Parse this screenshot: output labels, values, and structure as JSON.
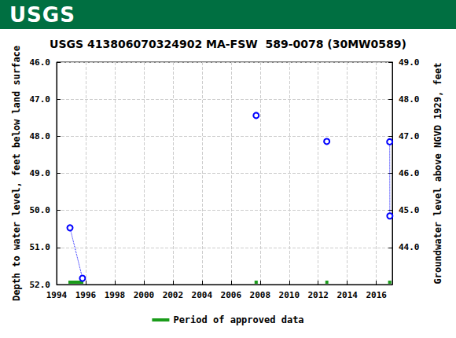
{
  "header": "USGS",
  "chart_data": {
    "type": "scatter",
    "title": "USGS 413806070324902 MA-FSW  589-0078 (30MW0589)",
    "y_label": "Depth to water level, feet below land surface",
    "y2_label": "Groundwater level above NGVD 1929, feet",
    "xlim": [
      1994,
      2017.1
    ],
    "xticks": [
      1994,
      1996,
      1998,
      2000,
      2002,
      2004,
      2006,
      2008,
      2010,
      2012,
      2014,
      2016
    ],
    "ylim": [
      46,
      52
    ],
    "yticks": [
      {
        "value": 46,
        "label": "46.0"
      },
      {
        "value": 47,
        "label": "47.0"
      },
      {
        "value": 48,
        "label": "48.0"
      },
      {
        "value": 49,
        "label": "49.0"
      },
      {
        "value": 50,
        "label": "50.0"
      },
      {
        "value": 51,
        "label": "51.0"
      },
      {
        "value": 52,
        "label": "52.0"
      }
    ],
    "y2lim": [
      43,
      49
    ],
    "y2ticks": [
      {
        "value": 44,
        "label": "44.0"
      },
      {
        "value": 45,
        "label": "45.0"
      },
      {
        "value": 46,
        "label": "46.0"
      },
      {
        "value": 47,
        "label": "47.0"
      },
      {
        "value": 48,
        "label": "48.0"
      },
      {
        "value": 49,
        "label": "49.0"
      }
    ],
    "grid": true,
    "marker": "circle",
    "line_style": "dotted",
    "color": "#0000ff",
    "series": [
      {
        "x": [
          1994.92,
          1995.78
        ],
        "values": [
          50.47,
          51.83
        ]
      },
      {
        "x": [
          2007.73
        ],
        "values": [
          47.44
        ]
      },
      {
        "x": [
          2012.59
        ],
        "values": [
          48.14
        ]
      },
      {
        "x": [
          2016.92,
          2016.93
        ],
        "values": [
          48.15,
          50.15
        ]
      }
    ],
    "approved_periods": {
      "name": "Period of approved data",
      "color": "#1a9c1a",
      "ranges": [
        [
          1994.81,
          1995.84
        ],
        [
          2007.62,
          2007.84
        ],
        [
          2012.49,
          2012.7
        ],
        [
          2016.81,
          2017.03
        ]
      ]
    },
    "legend": "bottom"
  }
}
